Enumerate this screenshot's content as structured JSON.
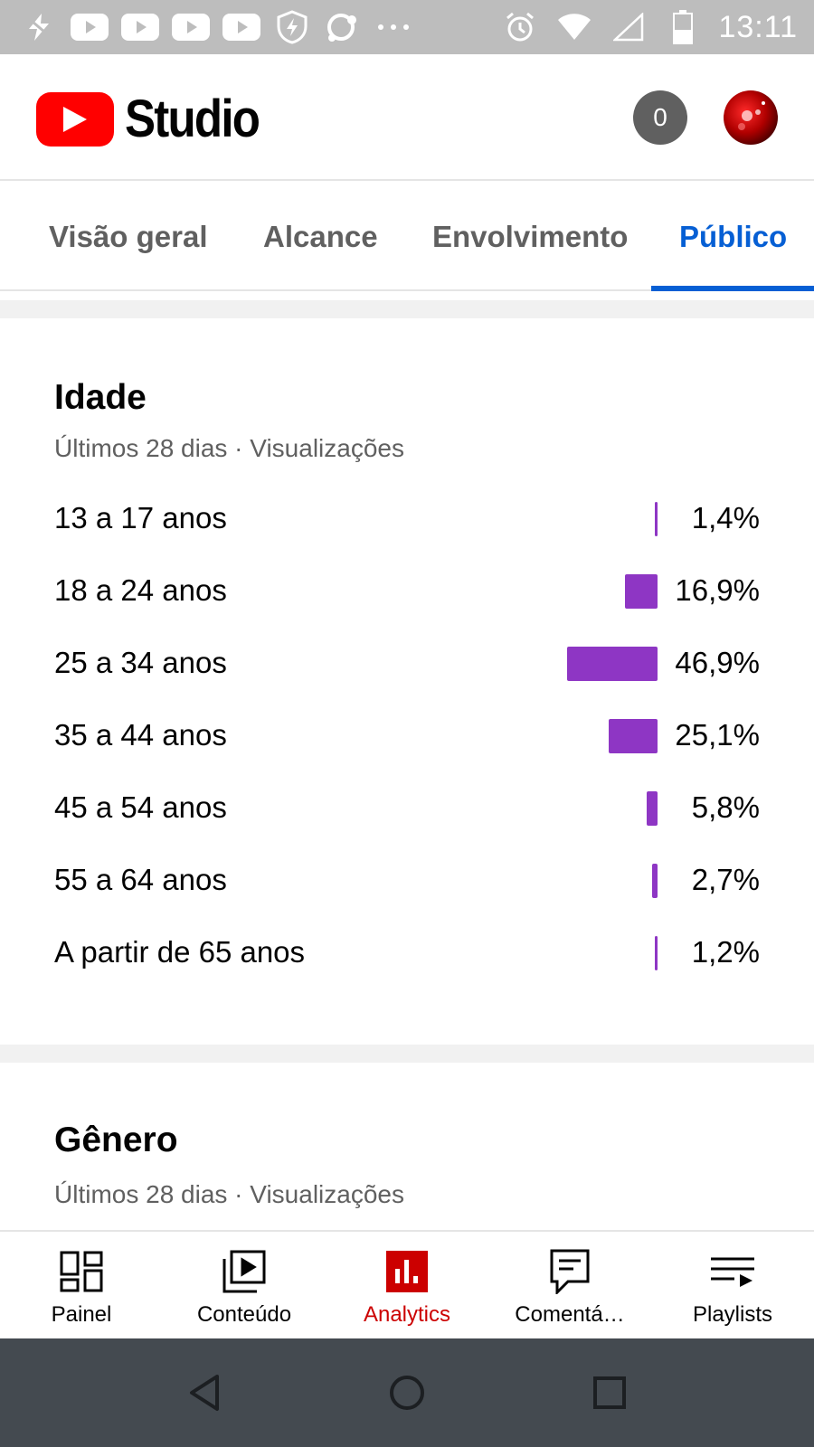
{
  "status_bar": {
    "time": "13:11",
    "left_icons": [
      "flash-off-icon",
      "youtube-icon",
      "youtube-icon",
      "youtube-icon",
      "youtube-icon",
      "shield-icon",
      "sync-icon",
      "more-horiz-icon"
    ],
    "right_icons": [
      "alarm-icon",
      "wifi-icon",
      "signal-icon",
      "battery-icon"
    ]
  },
  "header": {
    "logo_text": "Studio",
    "notification_count": "0"
  },
  "tabs": [
    {
      "label": "Visão geral",
      "active": false
    },
    {
      "label": "Alcance",
      "active": false
    },
    {
      "label": "Envolvimento",
      "active": false
    },
    {
      "label": "Público",
      "active": true
    }
  ],
  "age_card": {
    "title": "Idade",
    "subtitle": "Últimos 28 dias · Visualizações",
    "rows": [
      {
        "label": "13 a 17 anos",
        "value": "1,4%",
        "percent": 1.4
      },
      {
        "label": "18 a 24 anos",
        "value": "16,9%",
        "percent": 16.9
      },
      {
        "label": "25 a 34 anos",
        "value": "46,9%",
        "percent": 46.9
      },
      {
        "label": "35 a 44 anos",
        "value": "25,1%",
        "percent": 25.1
      },
      {
        "label": "45 a 54 anos",
        "value": "5,8%",
        "percent": 5.8
      },
      {
        "label": "55 a 64 anos",
        "value": "2,7%",
        "percent": 2.7
      },
      {
        "label": "A partir de 65 anos",
        "value": "1,2%",
        "percent": 1.2
      }
    ],
    "bar_color": "#8e36c4"
  },
  "gender_card": {
    "title": "Gênero",
    "subtitle": "Últimos 28 dias · Visualizações"
  },
  "bottom_nav": [
    {
      "label": "Painel",
      "icon": "dashboard-icon",
      "active": false
    },
    {
      "label": "Conteúdo",
      "icon": "video-library-icon",
      "active": false
    },
    {
      "label": "Analytics",
      "icon": "analytics-icon",
      "active": true
    },
    {
      "label": "Comentá…",
      "icon": "comment-icon",
      "active": false
    },
    {
      "label": "Playlists",
      "icon": "playlist-icon",
      "active": false
    }
  ],
  "colors": {
    "brand_red": "#ff0000",
    "active_tab": "#065fd4",
    "active_nav": "#cc0000"
  }
}
